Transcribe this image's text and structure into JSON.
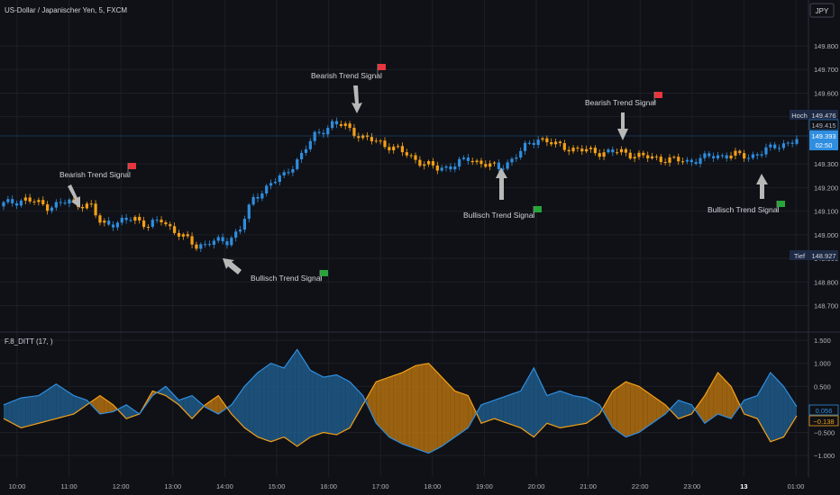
{
  "header": {
    "symbol_title": "US-Dollar / Japanischer Yen, 5, FXCM",
    "currency_badge": "JPY"
  },
  "indicator": {
    "title": "F.8_DITT (17, )"
  },
  "colors": {
    "background": "#0f1116",
    "bull": "#2f8ee0",
    "bear": "#f5a017",
    "bull_fill": "#1e5a8a",
    "bear_fill": "#b3700f",
    "grid": "#1c1f27",
    "axis_text": "#b2b5be",
    "annotation_text": "#d1d4dc",
    "arrow": "#b8b8b8",
    "flag_red": "#e8343c",
    "flag_green": "#26a63a"
  },
  "price_axis": {
    "hoch_label": "Hoch",
    "hoch_value": "149.476",
    "level_label_1": "149.415",
    "current_price": "149.393",
    "countdown": "02:50",
    "tief_label": "Tief",
    "tief_value": "148.927"
  },
  "indicator_axis": {
    "blue_value": "0.056",
    "orange_value": "−0.138"
  },
  "annotations": [
    {
      "text": "Bearish Trend Signal",
      "flag": "red"
    },
    {
      "text": "Bullisch Trend Signal",
      "flag": "green"
    },
    {
      "text": "Bearish Trend Signal",
      "flag": "red"
    },
    {
      "text": "Bullisch Trend Signal",
      "flag": "green"
    },
    {
      "text": "Bearish Trend Signal",
      "flag": "red"
    },
    {
      "text": "Bullisch Trend Signal",
      "flag": "green"
    }
  ],
  "chart_data": [
    {
      "type": "candlestick",
      "title": "US-Dollar / Japanischer Yen, 5, FXCM",
      "y_ticks": [
        "149.800",
        "149.700",
        "149.600",
        "149.500",
        "149.300",
        "149.200",
        "149.100",
        "149.000",
        "148.900",
        "148.800",
        "148.700"
      ],
      "ylim": [
        148.66,
        149.88
      ],
      "x_ticks": [
        "10:00",
        "11:00",
        "12:00",
        "13:00",
        "14:00",
        "15:00",
        "16:00",
        "17:00",
        "18:00",
        "19:00",
        "20:00",
        "21:00",
        "22:00",
        "23:00",
        "13",
        "01:00"
      ],
      "grid": true,
      "series": [
        {
          "name": "close_path",
          "points": [
            [
              0,
              149.13
            ],
            [
              5,
              149.15
            ],
            [
              10,
              149.12
            ],
            [
              15,
              149.14
            ],
            [
              20,
              149.12
            ],
            [
              22,
              149.05
            ],
            [
              26,
              149.05
            ],
            [
              30,
              149.07
            ],
            [
              33,
              149.04
            ],
            [
              36,
              149.06
            ],
            [
              41,
              148.99
            ],
            [
              44,
              148.95
            ],
            [
              47,
              148.97
            ],
            [
              51,
              148.97
            ],
            [
              54,
              149.03
            ],
            [
              57,
              149.15
            ],
            [
              61,
              149.22
            ],
            [
              64,
              149.25
            ],
            [
              68,
              149.34
            ],
            [
              71,
              149.42
            ],
            [
              75,
              149.47
            ],
            [
              78,
              149.46
            ],
            [
              82,
              149.41
            ],
            [
              86,
              149.39
            ],
            [
              90,
              149.36
            ],
            [
              93,
              149.33
            ],
            [
              96,
              149.3
            ],
            [
              99,
              149.28
            ],
            [
              102,
              149.29
            ],
            [
              106,
              149.32
            ],
            [
              110,
              149.3
            ],
            [
              113,
              149.28
            ],
            [
              116,
              149.32
            ],
            [
              119,
              149.37
            ],
            [
              122,
              149.41
            ],
            [
              126,
              149.38
            ],
            [
              131,
              149.36
            ],
            [
              136,
              149.35
            ],
            [
              141,
              149.35
            ],
            [
              146,
              149.33
            ],
            [
              151,
              149.32
            ],
            [
              156,
              149.31
            ],
            [
              161,
              149.33
            ],
            [
              166,
              149.34
            ],
            [
              170,
              149.33
            ],
            [
              173,
              149.35
            ],
            [
              177,
              149.38
            ],
            [
              181,
              149.4
            ]
          ]
        }
      ]
    },
    {
      "type": "area",
      "title": "F.8_DITT (17, )",
      "y_ticks": [
        "1.500",
        "1.000",
        "0.500",
        "−0.500",
        "−1.000"
      ],
      "ylim": [
        -1.35,
        1.62
      ],
      "series": [
        {
          "name": "",
          "color": "#2f8ee0",
          "points": [
            [
              0,
              0.1
            ],
            [
              4,
              0.25
            ],
            [
              8,
              0.3
            ],
            [
              12,
              0.55
            ],
            [
              16,
              0.3
            ],
            [
              19,
              0.2
            ],
            [
              22,
              -0.1
            ],
            [
              25,
              -0.05
            ],
            [
              28,
              0.1
            ],
            [
              31,
              -0.1
            ],
            [
              34,
              0.3
            ],
            [
              37,
              0.5
            ],
            [
              40,
              0.2
            ],
            [
              43,
              0.3
            ],
            [
              46,
              0.05
            ],
            [
              49,
              -0.1
            ],
            [
              52,
              0.1
            ],
            [
              55,
              0.5
            ],
            [
              58,
              0.8
            ],
            [
              61,
              1.0
            ],
            [
              64,
              0.9
            ],
            [
              67,
              1.3
            ],
            [
              70,
              0.85
            ],
            [
              73,
              0.7
            ],
            [
              76,
              0.75
            ],
            [
              79,
              0.6
            ],
            [
              82,
              0.3
            ],
            [
              85,
              -0.3
            ],
            [
              88,
              -0.6
            ],
            [
              91,
              -0.75
            ],
            [
              94,
              -0.85
            ],
            [
              97,
              -0.95
            ],
            [
              100,
              -0.8
            ],
            [
              103,
              -0.6
            ],
            [
              106,
              -0.4
            ],
            [
              109,
              0.1
            ],
            [
              112,
              0.2
            ],
            [
              115,
              0.3
            ],
            [
              118,
              0.4
            ],
            [
              121,
              0.9
            ],
            [
              124,
              0.3
            ],
            [
              127,
              0.4
            ],
            [
              130,
              0.3
            ],
            [
              133,
              0.25
            ],
            [
              136,
              0.1
            ],
            [
              139,
              -0.4
            ],
            [
              142,
              -0.6
            ],
            [
              145,
              -0.5
            ],
            [
              148,
              -0.3
            ],
            [
              151,
              -0.1
            ],
            [
              154,
              0.2
            ],
            [
              157,
              0.1
            ],
            [
              160,
              -0.3
            ],
            [
              163,
              -0.1
            ],
            [
              166,
              -0.2
            ],
            [
              169,
              0.2
            ],
            [
              172,
              0.3
            ],
            [
              175,
              0.8
            ],
            [
              178,
              0.5
            ],
            [
              181,
              0.06
            ]
          ]
        },
        {
          "name": "",
          "color": "#f5a017",
          "points": [
            [
              0,
              -0.2
            ],
            [
              4,
              -0.4
            ],
            [
              8,
              -0.3
            ],
            [
              12,
              -0.2
            ],
            [
              16,
              -0.1
            ],
            [
              19,
              0.1
            ],
            [
              22,
              0.3
            ],
            [
              25,
              0.1
            ],
            [
              28,
              -0.2
            ],
            [
              31,
              -0.1
            ],
            [
              34,
              0.4
            ],
            [
              37,
              0.3
            ],
            [
              40,
              0.1
            ],
            [
              43,
              -0.2
            ],
            [
              46,
              0.1
            ],
            [
              49,
              0.3
            ],
            [
              52,
              -0.1
            ],
            [
              55,
              -0.4
            ],
            [
              58,
              -0.6
            ],
            [
              61,
              -0.7
            ],
            [
              64,
              -0.6
            ],
            [
              67,
              -0.8
            ],
            [
              70,
              -0.6
            ],
            [
              73,
              -0.5
            ],
            [
              76,
              -0.55
            ],
            [
              79,
              -0.4
            ],
            [
              82,
              0.1
            ],
            [
              85,
              0.6
            ],
            [
              88,
              0.7
            ],
            [
              91,
              0.8
            ],
            [
              94,
              0.95
            ],
            [
              97,
              1.0
            ],
            [
              100,
              0.7
            ],
            [
              103,
              0.4
            ],
            [
              106,
              0.3
            ],
            [
              109,
              -0.3
            ],
            [
              112,
              -0.2
            ],
            [
              115,
              -0.3
            ],
            [
              118,
              -0.4
            ],
            [
              121,
              -0.6
            ],
            [
              124,
              -0.3
            ],
            [
              127,
              -0.4
            ],
            [
              130,
              -0.35
            ],
            [
              133,
              -0.3
            ],
            [
              136,
              -0.1
            ],
            [
              139,
              0.4
            ],
            [
              142,
              0.6
            ],
            [
              145,
              0.5
            ],
            [
              148,
              0.3
            ],
            [
              151,
              0.1
            ],
            [
              154,
              -0.2
            ],
            [
              157,
              -0.1
            ],
            [
              160,
              0.3
            ],
            [
              163,
              0.8
            ],
            [
              166,
              0.5
            ],
            [
              169,
              -0.1
            ],
            [
              172,
              -0.2
            ],
            [
              175,
              -0.7
            ],
            [
              178,
              -0.6
            ],
            [
              181,
              -0.14
            ]
          ]
        }
      ]
    }
  ]
}
